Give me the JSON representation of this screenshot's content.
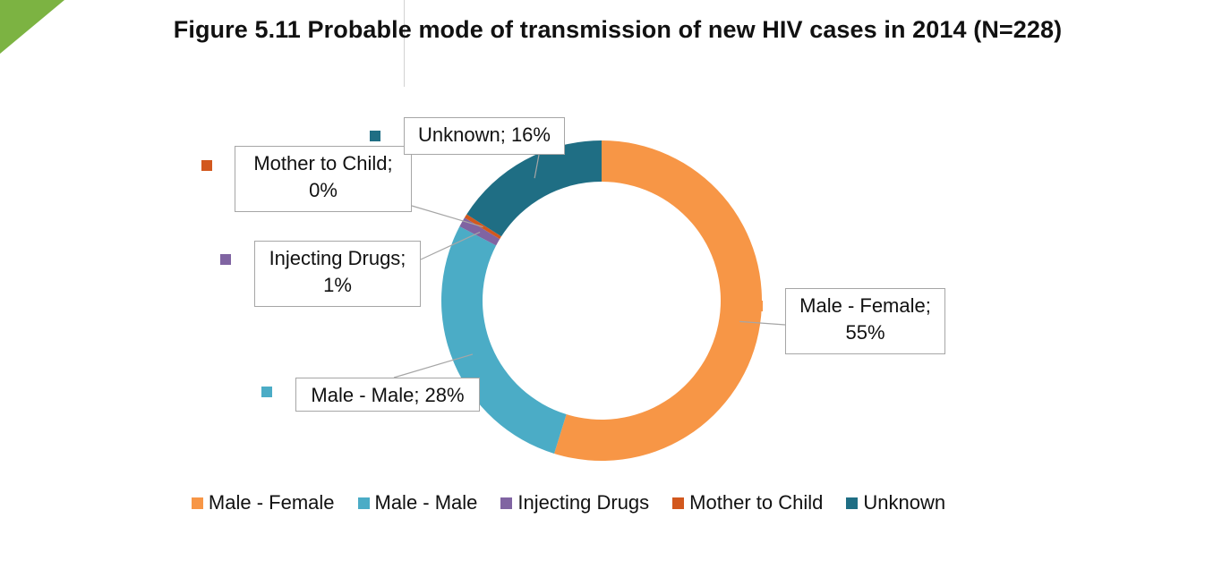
{
  "title": "Figure 5.11 Probable mode of transmission of new HIV cases in 2014 (N=228)",
  "colors": {
    "male_female": "#F79646",
    "male_male": "#4BACC6",
    "injecting_drugs": "#8064A2",
    "mother_to_child": "#D2581E",
    "unknown": "#1F6E84",
    "deco_green": "#7CB342"
  },
  "chart_data": {
    "type": "pie",
    "variant": "doughnut",
    "title": "Figure 5.11 Probable mode of transmission of new HIV cases in 2014 (N=228)",
    "categories": [
      "Male - Female",
      "Male - Male",
      "Injecting Drugs",
      "Mother to Child",
      "Unknown"
    ],
    "values": [
      55,
      28,
      1,
      0.4,
      16
    ],
    "value_unit": "%",
    "data_labels": [
      "Male - Female;\n55%",
      "Male - Male; 28%",
      "Injecting Drugs;\n1%",
      "Mother to Child;\n0%",
      "Unknown; 16%"
    ],
    "legend": {
      "placement": "bottom",
      "entries": [
        "Male - Female",
        "Male - Male",
        "Injecting Drugs",
        "Mother to Child",
        "Unknown"
      ]
    }
  }
}
